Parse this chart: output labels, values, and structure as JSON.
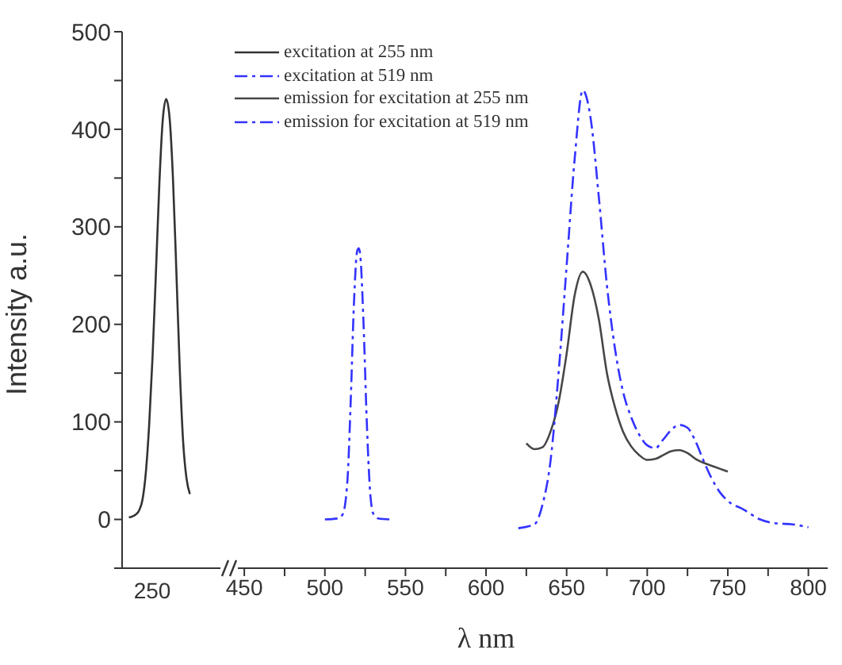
{
  "chart_data": [
    {
      "type": "line",
      "ylabel": "Intensity a.u.",
      "categories": [
        null,
        null,
        null,
        null,
        null,
        null,
        null,
        null,
        null,
        null,
        null,
        null,
        null,
        null,
        null,
        null,
        null,
        null,
        null,
        null,
        null,
        null,
        null,
        null,
        null,
        null,
        null,
        null,
        null,
        null
      ],
      "ylim": [
        -50,
        500
      ],
      "yticks": [
        {
          "value": -50,
          "label": null
        },
        0,
        {
          "value": 50,
          "label": null
        },
        100,
        {
          "value": 150,
          "label": null
        },
        200,
        {
          "value": 250,
          "label": null
        },
        300,
        {
          "value": 350,
          "label": null
        },
        400,
        {
          "value": 450,
          "label": null
        },
        500
      ],
      "legend": "top right",
      "marker": "none",
      "annotations": [
        "250"
      ],
      "series": [
        {
          "name": "excitation at 255 nm",
          "color": "#333333",
          "line_style": "solid",
          "values": [
            null,
            null,
            2,
            3,
            5,
            9,
            20,
            48,
            98,
            168,
            255,
            345,
            410,
            431,
            412,
            350,
            255,
            155,
            80,
            42,
            26,
            null,
            null,
            null,
            null,
            null,
            null,
            null,
            null,
            null
          ]
        }
      ]
    },
    {
      "type": "line",
      "xlabel": "λ nm",
      "xlim": [
        446,
        812
      ],
      "xticks": [
        450,
        {
          "value": 475,
          "label": null
        },
        500,
        {
          "value": 525,
          "label": null
        },
        550,
        {
          "value": 575,
          "label": null
        },
        600,
        {
          "value": 625,
          "label": null
        },
        650,
        {
          "value": 675,
          "label": null
        },
        700,
        {
          "value": 725,
          "label": null
        },
        750,
        {
          "value": 775,
          "label": null
        },
        800
      ],
      "ylim": [
        -50,
        500
      ],
      "tick_labels": "x",
      "legend": "top left",
      "marker": "none",
      "series": [
        {
          "name": "excitation at 519 nm",
          "color": "#3333ff",
          "line_style": "dashed",
          "x": [
            500,
            508,
            511,
            514,
            516,
            518,
            520,
            521,
            522,
            524,
            526,
            528,
            530,
            533,
            540
          ],
          "values": [
            0,
            1,
            5,
            40,
            120,
            220,
            275,
            278,
            270,
            200,
            100,
            30,
            6,
            1,
            0
          ]
        },
        {
          "name": "emission for excitation at 255 nm",
          "color": "#474747",
          "line_style": "solid",
          "x": [
            625,
            630,
            635,
            640,
            645,
            650,
            655,
            660,
            665,
            670,
            675,
            680,
            685,
            690,
            695,
            700,
            705,
            710,
            715,
            720,
            725,
            730,
            735,
            740,
            745,
            750
          ],
          "values": [
            78,
            72,
            74,
            90,
            120,
            170,
            230,
            254,
            240,
            205,
            150,
            115,
            90,
            75,
            66,
            61,
            62,
            66,
            70,
            71,
            68,
            62,
            58,
            55,
            52,
            49
          ]
        },
        {
          "name": "emission for excitation at 519 nm",
          "color": "#3333ff",
          "line_style": "dashed",
          "x": [
            620,
            630,
            635,
            640,
            645,
            650,
            655,
            660,
            665,
            670,
            675,
            680,
            685,
            690,
            695,
            700,
            705,
            710,
            715,
            720,
            725,
            730,
            735,
            740,
            745,
            750,
            760,
            770,
            780,
            790,
            800
          ],
          "values": [
            -9,
            -5,
            15,
            60,
            150,
            260,
            370,
            440,
            410,
            330,
            240,
            175,
            131,
            105,
            87,
            76,
            73,
            82,
            92,
            97,
            94,
            80,
            60,
            42,
            28,
            19,
            10,
            0,
            -4,
            -5,
            -8
          ]
        }
      ]
    }
  ]
}
